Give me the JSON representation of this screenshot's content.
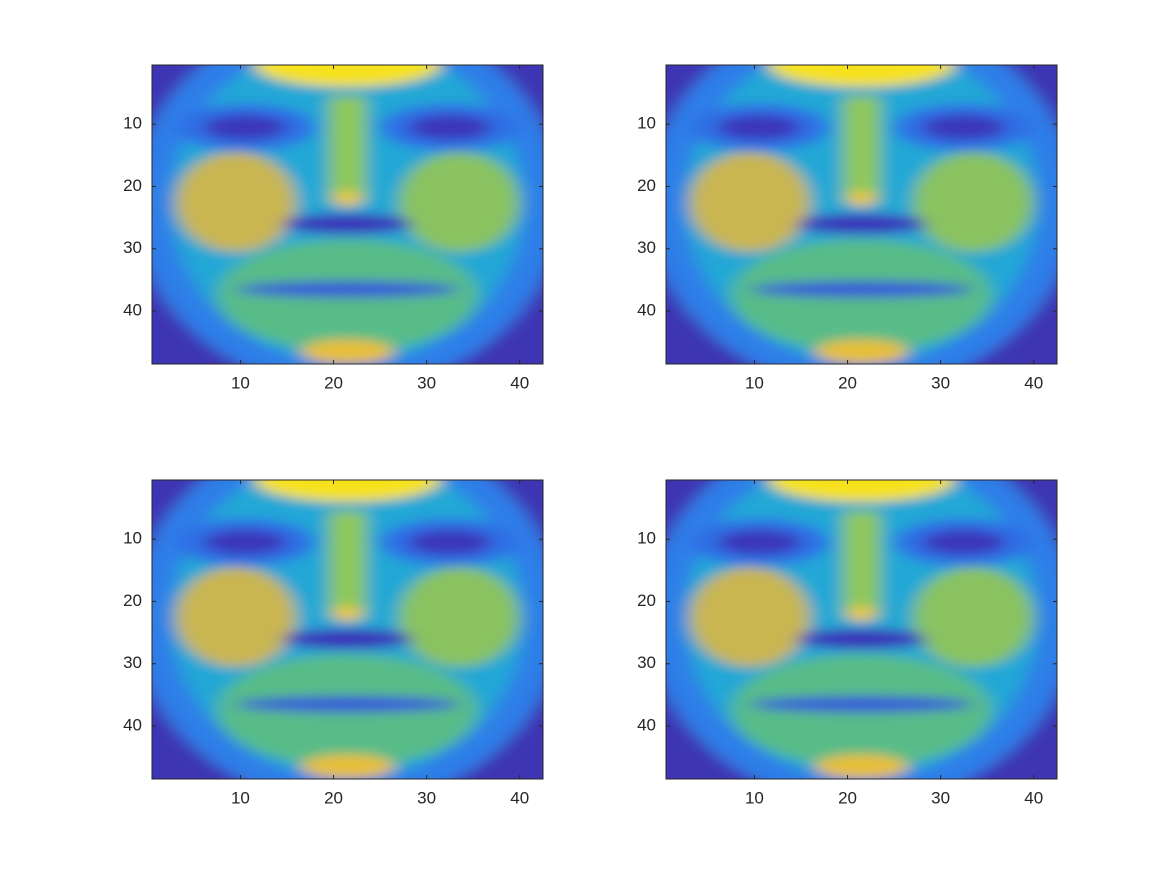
{
  "chart_data": [
    {
      "type": "image",
      "xlim": [
        0.5,
        42.5
      ],
      "ylim": [
        0.5,
        48.5
      ],
      "y_direction": "reverse",
      "xticks": [
        10,
        20,
        30,
        40
      ],
      "yticks": [
        10,
        20,
        30,
        40
      ]
    },
    {
      "type": "image",
      "xlim": [
        0.5,
        42.5
      ],
      "ylim": [
        0.5,
        48.5
      ],
      "y_direction": "reverse",
      "xticks": [
        10,
        20,
        30,
        40
      ],
      "yticks": [
        10,
        20,
        30,
        40
      ]
    },
    {
      "type": "image",
      "xlim": [
        0.5,
        42.5
      ],
      "ylim": [
        0.5,
        48.5
      ],
      "y_direction": "reverse",
      "xticks": [
        10,
        20,
        30,
        40
      ],
      "yticks": [
        10,
        20,
        30,
        40
      ]
    },
    {
      "type": "image",
      "xlim": [
        0.5,
        42.5
      ],
      "ylim": [
        0.5,
        48.5
      ],
      "y_direction": "reverse",
      "xticks": [
        10,
        20,
        30,
        40
      ],
      "yticks": [
        10,
        20,
        30,
        40
      ]
    }
  ]
}
